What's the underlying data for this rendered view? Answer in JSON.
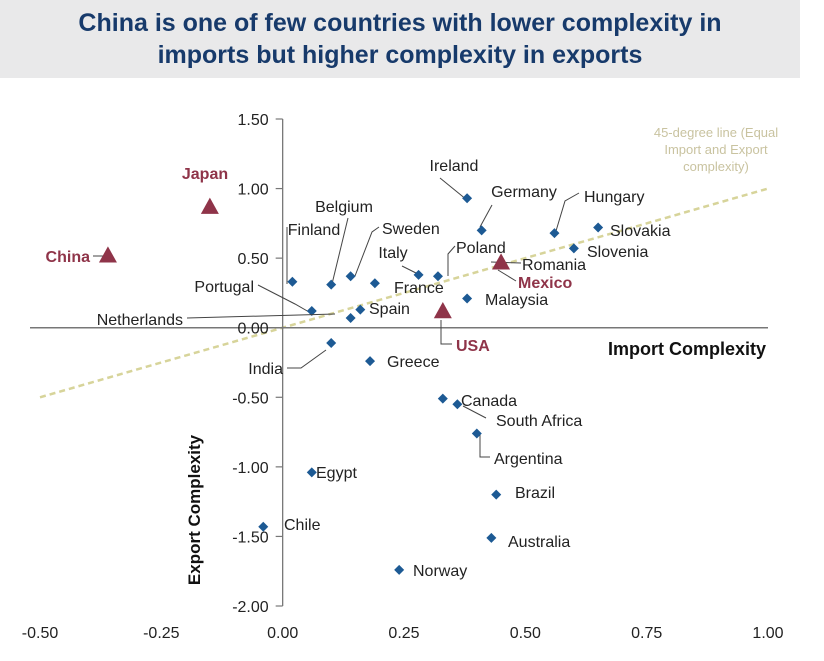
{
  "title": {
    "line1": "China is one of few countries with lower complexity in",
    "line2": "imports but higher complexity in exports"
  },
  "chart_data": {
    "type": "scatter",
    "xlabel": "Import Complexity",
    "ylabel": "Export Complexity",
    "xlim": [
      -0.5,
      1.0
    ],
    "ylim": [
      -2.0,
      1.5
    ],
    "x_ticks": [
      "-0.50",
      "-0.25",
      "0.00",
      "0.25",
      "0.50",
      "0.75",
      "1.00"
    ],
    "y_ticks": [
      "1.50",
      "1.00",
      "0.50",
      "0.00",
      "-0.50",
      "-1.00",
      "-1.50",
      "-2.00"
    ],
    "grid": false,
    "colors": {
      "point": "#1d5a94",
      "highlight": "#8f3449",
      "line45": "#d7d49a",
      "title": "#173a6b"
    },
    "reference_line": {
      "label_lines": [
        "45-degree line (Equal",
        "Import and Export",
        "complexity)"
      ],
      "slope": 1,
      "intercept": 0
    },
    "points": [
      {
        "name": "Ireland",
        "x": 0.38,
        "y": 0.93,
        "marker": "diamond"
      },
      {
        "name": "Germany",
        "x": 0.41,
        "y": 0.7,
        "marker": "diamond"
      },
      {
        "name": "Hungary",
        "x": 0.56,
        "y": 0.68,
        "marker": "diamond"
      },
      {
        "name": "Slovakia",
        "x": 0.65,
        "y": 0.72,
        "marker": "diamond"
      },
      {
        "name": "Slovenia",
        "x": 0.6,
        "y": 0.57,
        "marker": "diamond"
      },
      {
        "name": "Belgium",
        "x": 0.1,
        "y": 0.31,
        "marker": "diamond"
      },
      {
        "name": "Finland",
        "x": 0.02,
        "y": 0.33,
        "marker": "diamond"
      },
      {
        "name": "Sweden",
        "x": 0.14,
        "y": 0.37,
        "marker": "diamond"
      },
      {
        "name": "Italy",
        "x": 0.28,
        "y": 0.38,
        "marker": "diamond"
      },
      {
        "name": "France",
        "x": 0.19,
        "y": 0.32,
        "marker": "diamond"
      },
      {
        "name": "Poland",
        "x": 0.32,
        "y": 0.37,
        "marker": "diamond"
      },
      {
        "name": "Romania",
        "x": 0.45,
        "y": 0.46,
        "marker": "diamond"
      },
      {
        "name": "Malaysia",
        "x": 0.38,
        "y": 0.21,
        "marker": "diamond"
      },
      {
        "name": "Portugal",
        "x": 0.06,
        "y": 0.12,
        "marker": "diamond"
      },
      {
        "name": "Spain",
        "x": 0.16,
        "y": 0.13,
        "marker": "diamond"
      },
      {
        "name": "Netherlands",
        "x": 0.14,
        "y": 0.07,
        "marker": "diamond"
      },
      {
        "name": "India",
        "x": 0.1,
        "y": -0.11,
        "marker": "diamond"
      },
      {
        "name": "Greece",
        "x": 0.18,
        "y": -0.24,
        "marker": "diamond"
      },
      {
        "name": "Canada",
        "x": 0.33,
        "y": -0.51,
        "marker": "diamond"
      },
      {
        "name": "South Africa",
        "x": 0.36,
        "y": -0.55,
        "marker": "diamond"
      },
      {
        "name": "Argentina",
        "x": 0.4,
        "y": -0.76,
        "marker": "diamond"
      },
      {
        "name": "Egypt",
        "x": 0.06,
        "y": -1.04,
        "marker": "diamond"
      },
      {
        "name": "Brazil",
        "x": 0.44,
        "y": -1.2,
        "marker": "diamond"
      },
      {
        "name": "Chile",
        "x": -0.04,
        "y": -1.43,
        "marker": "diamond"
      },
      {
        "name": "Australia",
        "x": 0.43,
        "y": -1.51,
        "marker": "diamond"
      },
      {
        "name": "Norway",
        "x": 0.24,
        "y": -1.74,
        "marker": "diamond"
      },
      {
        "name": "Mexico",
        "x": 0.45,
        "y": 0.47,
        "marker": "triangle"
      },
      {
        "name": "USA",
        "x": 0.33,
        "y": 0.12,
        "marker": "triangle"
      },
      {
        "name": "Japan",
        "x": -0.15,
        "y": 0.87,
        "marker": "triangle"
      },
      {
        "name": "China",
        "x": -0.36,
        "y": 0.52,
        "marker": "triangle"
      }
    ]
  }
}
